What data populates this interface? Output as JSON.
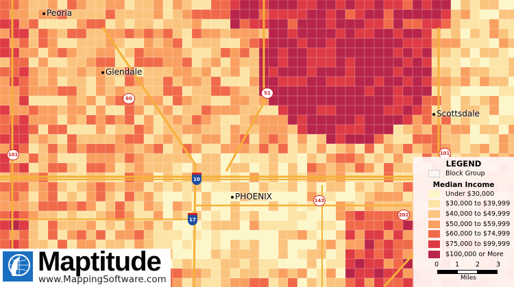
{
  "map": {
    "cities": [
      {
        "name": "Peoria",
        "label": "Peoria"
      },
      {
        "name": "Glendale",
        "label": "Glendale"
      },
      {
        "name": "Scottsdale",
        "label": "Scottsdale"
      },
      {
        "name": "Phoenix",
        "label": "PHOENIX"
      }
    ],
    "highways": [
      {
        "type": "loop",
        "label": "101"
      },
      {
        "type": "state",
        "label": "60"
      },
      {
        "type": "state",
        "label": "51"
      },
      {
        "type": "interstate",
        "label": "10"
      },
      {
        "type": "interstate",
        "label": "17"
      },
      {
        "type": "state",
        "label": "143"
      },
      {
        "type": "loop",
        "label": "202"
      },
      {
        "type": "loop",
        "label": "101"
      }
    ]
  },
  "legend": {
    "title": "LEGEND",
    "boundary_label": "Block Group",
    "subtitle": "Median Income",
    "classes": [
      {
        "label": "Under $30,000",
        "color": "#fdf6c9"
      },
      {
        "label": "$30,000 to $39,999",
        "color": "#fce4a6"
      },
      {
        "label": "$40,000 to $49,999",
        "color": "#fbc47e"
      },
      {
        "label": "$50,000 to $59,999",
        "color": "#f9a061"
      },
      {
        "label": "$60,000 to $74,999",
        "color": "#f06a4a"
      },
      {
        "label": "$75,000 to $99,999",
        "color": "#de3b45"
      },
      {
        "label": "$100,000 or More",
        "color": "#b8254a"
      }
    ],
    "scale": {
      "ticks": [
        "0",
        "1",
        "2",
        "3"
      ],
      "unit": "Miles"
    }
  },
  "logo": {
    "name": "Maptitude",
    "url": "www.MappingSoftware.com"
  }
}
